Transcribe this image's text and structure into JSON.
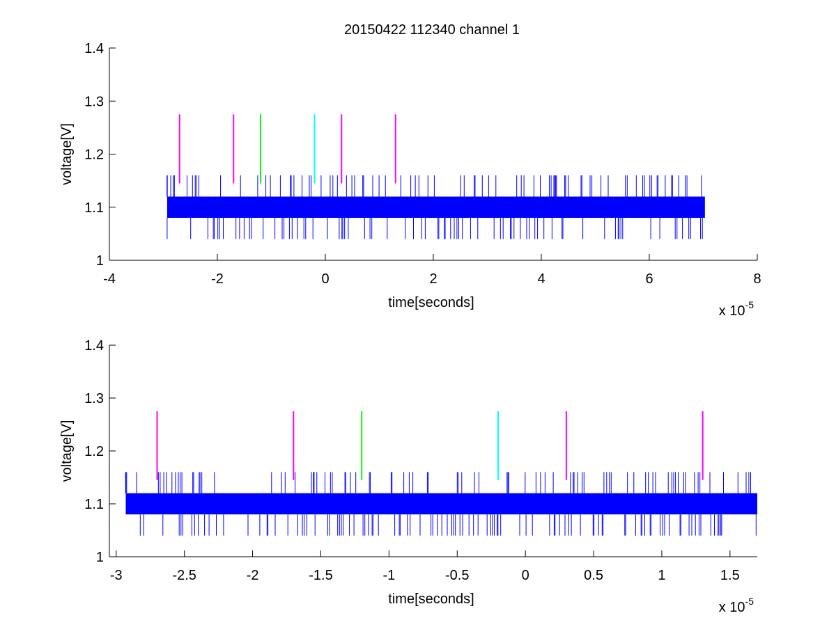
{
  "figure": {
    "title": "20150422 112340 channel 1"
  },
  "chart_data": [
    {
      "type": "line",
      "xlabel": "time[seconds]",
      "ylabel": "voltage[V]",
      "x_exponent_label": "x 10",
      "x_exponent": "-5",
      "xlim": [
        -4,
        8
      ],
      "ylim": [
        1,
        1.4
      ],
      "xticks": [
        -4,
        -2,
        0,
        2,
        4,
        6,
        8
      ],
      "xtick_labels": [
        "-4",
        "-2",
        "0",
        "2",
        "4",
        "6",
        "8"
      ],
      "yticks": [
        1,
        1.1,
        1.2,
        1.3,
        1.4
      ],
      "ytick_labels": [
        "1",
        "1.1",
        "1.2",
        "1.3",
        "1.4"
      ],
      "grid": false,
      "signal": {
        "color": "#0000ff",
        "x_range": [
          -2.93,
          7.03
        ],
        "levels": [
          1.04,
          1.08,
          1.12,
          1.16
        ]
      },
      "markers": [
        {
          "x": -2.7,
          "color": "#ff00ff",
          "y": [
            1.145,
            1.275
          ]
        },
        {
          "x": -1.7,
          "color": "#ff00ff",
          "y": [
            1.145,
            1.275
          ]
        },
        {
          "x": -1.2,
          "color": "#00ff00",
          "y": [
            1.145,
            1.275
          ]
        },
        {
          "x": -0.2,
          "color": "#00ffff",
          "y": [
            1.145,
            1.275
          ]
        },
        {
          "x": 0.3,
          "color": "#ff00ff",
          "y": [
            1.145,
            1.275
          ]
        },
        {
          "x": 1.3,
          "color": "#ff00ff",
          "y": [
            1.145,
            1.275
          ]
        }
      ]
    },
    {
      "type": "line",
      "xlabel": "time[seconds]",
      "ylabel": "voltage[V]",
      "x_exponent_label": "x 10",
      "x_exponent": "-5",
      "xlim": [
        -3.05,
        1.7
      ],
      "ylim": [
        1,
        1.4
      ],
      "xticks": [
        -3,
        -2.5,
        -2,
        -1.5,
        -1,
        -0.5,
        0,
        0.5,
        1,
        1.5
      ],
      "xtick_labels": [
        "-3",
        "-2.5",
        "-2",
        "-1.5",
        "-1",
        "-0.5",
        "0",
        "0.5",
        "1",
        "1.5"
      ],
      "yticks": [
        1,
        1.1,
        1.2,
        1.3,
        1.4
      ],
      "ytick_labels": [
        "1",
        "1.1",
        "1.2",
        "1.3",
        "1.4"
      ],
      "grid": false,
      "signal": {
        "color": "#0000ff",
        "x_range": [
          -2.93,
          1.7
        ],
        "levels": [
          1.04,
          1.08,
          1.12,
          1.16
        ]
      },
      "markers": [
        {
          "x": -2.7,
          "color": "#ff00ff",
          "y": [
            1.145,
            1.275
          ]
        },
        {
          "x": -1.7,
          "color": "#ff00ff",
          "y": [
            1.145,
            1.275
          ]
        },
        {
          "x": -1.2,
          "color": "#00ff00",
          "y": [
            1.145,
            1.275
          ]
        },
        {
          "x": -0.2,
          "color": "#00ffff",
          "y": [
            1.145,
            1.275
          ]
        },
        {
          "x": 0.3,
          "color": "#ff00ff",
          "y": [
            1.145,
            1.275
          ]
        },
        {
          "x": 1.3,
          "color": "#ff00ff",
          "y": [
            1.145,
            1.275
          ]
        }
      ]
    }
  ]
}
